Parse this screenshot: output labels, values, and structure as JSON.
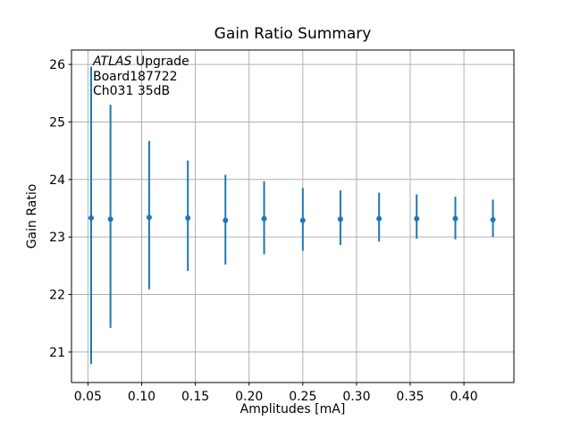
{
  "chart_data": {
    "type": "scatter",
    "title": "Gain Ratio Summary",
    "xlabel": "Amplitudes [mA]",
    "ylabel": "Gain Ratio",
    "xlim": [
      0.0347,
      0.4465
    ],
    "ylim": [
      20.47,
      26.25
    ],
    "grid": true,
    "grid_color": "#b0b0b0",
    "spine_color": "#000000",
    "background_color": "#ffffff",
    "legend_position": "none",
    "x_ticks": {
      "values": [
        0.05,
        0.1,
        0.15,
        0.2,
        0.25,
        0.3,
        0.35,
        0.4
      ],
      "labels": [
        "0.05",
        "0.10",
        "0.15",
        "0.20",
        "0.25",
        "0.30",
        "0.35",
        "0.40"
      ]
    },
    "y_ticks": {
      "values": [
        21,
        22,
        23,
        24,
        25,
        26
      ],
      "labels": [
        "21",
        "22",
        "23",
        "24",
        "25",
        "26"
      ]
    },
    "series": [
      {
        "name": "gain-ratio-errorbar-series",
        "color": "#1f77b4",
        "marker": "point",
        "x": [
          0.053,
          0.071,
          0.107,
          0.143,
          0.178,
          0.214,
          0.25,
          0.285,
          0.321,
          0.356,
          0.392,
          0.427
        ],
        "y": [
          23.33,
          23.31,
          23.34,
          23.33,
          23.29,
          23.32,
          23.29,
          23.31,
          23.32,
          23.32,
          23.32,
          23.3
        ],
        "y_high": [
          25.96,
          25.3,
          24.67,
          24.33,
          24.08,
          23.97,
          23.85,
          23.81,
          23.77,
          23.74,
          23.7,
          23.65
        ],
        "y_low": [
          20.79,
          21.42,
          22.09,
          22.41,
          22.52,
          22.7,
          22.76,
          22.86,
          22.92,
          22.97,
          22.96,
          23.0
        ]
      }
    ],
    "annotation": {
      "line1_italic": "ATLAS",
      "line1_rest": " Upgrade",
      "line2": "Board187722",
      "line3": "Ch031 35dB"
    }
  }
}
